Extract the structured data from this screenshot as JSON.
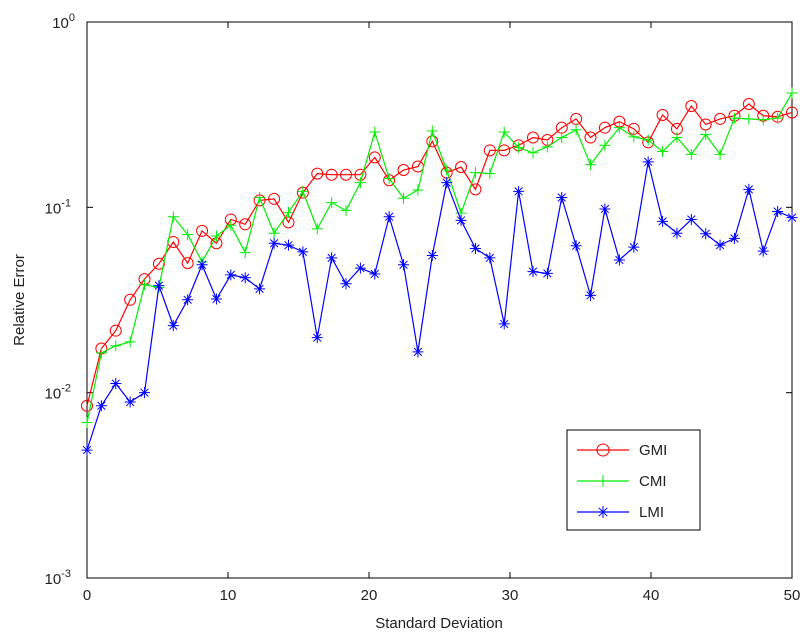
{
  "chart_data": {
    "type": "line",
    "xlabel": "Standard Deviation",
    "ylabel": "Relative Error",
    "log_y": true,
    "grid": false,
    "legend": "lower right",
    "x": [
      0,
      1.02,
      2.04,
      3.06,
      4.08,
      5.1,
      6.12,
      7.14,
      8.16,
      9.18,
      10.2,
      11.22,
      12.24,
      13.27,
      14.29,
      15.31,
      16.33,
      17.35,
      18.37,
      19.39,
      20.41,
      21.43,
      22.45,
      23.47,
      24.49,
      25.51,
      26.53,
      27.55,
      28.57,
      29.59,
      30.61,
      31.63,
      32.65,
      33.67,
      34.69,
      35.71,
      36.73,
      37.76,
      38.78,
      39.8,
      40.82,
      41.84,
      42.86,
      43.88,
      44.9,
      45.92,
      46.94,
      47.96,
      48.98,
      50
    ],
    "series": [
      {
        "name": "GMI",
        "color": "#ff0000",
        "marker": "circle",
        "values": [
          0.0085,
          0.0173,
          0.0216,
          0.0317,
          0.041,
          0.0496,
          0.065,
          0.05,
          0.0746,
          0.064,
          0.086,
          0.081,
          0.109,
          0.111,
          0.083,
          0.12,
          0.152,
          0.15,
          0.15,
          0.15,
          0.186,
          0.14,
          0.159,
          0.166,
          0.227,
          0.154,
          0.165,
          0.125,
          0.203,
          0.203,
          0.216,
          0.238,
          0.231,
          0.269,
          0.3,
          0.238,
          0.269,
          0.29,
          0.265,
          0.224,
          0.315,
          0.265,
          0.352,
          0.28,
          0.3,
          0.312,
          0.361,
          0.312,
          0.308,
          0.325
        ]
      },
      {
        "name": "CMI",
        "color": "#00ee00",
        "marker": "plus",
        "values": [
          0.0069,
          0.0164,
          0.0179,
          0.0188,
          0.0382,
          0.037,
          0.0889,
          0.0714,
          0.0508,
          0.07,
          0.08,
          0.057,
          0.113,
          0.0725,
          0.094,
          0.122,
          0.0766,
          0.106,
          0.096,
          0.136,
          0.255,
          0.143,
          0.112,
          0.124,
          0.258,
          0.159,
          0.093,
          0.154,
          0.152,
          0.255,
          0.21,
          0.197,
          0.212,
          0.238,
          0.262,
          0.17,
          0.216,
          0.269,
          0.24,
          0.231,
          0.2,
          0.238,
          0.193,
          0.247,
          0.193,
          0.303,
          0.3,
          0.297,
          0.303,
          0.414
        ]
      },
      {
        "name": "LMI",
        "color": "#0000ff",
        "marker": "asterisk",
        "values": [
          0.0049,
          0.0085,
          0.0112,
          0.0089,
          0.01,
          0.0378,
          0.023,
          0.0317,
          0.049,
          0.032,
          0.0432,
          0.0417,
          0.0363,
          0.064,
          0.0625,
          0.0575,
          0.0198,
          0.0534,
          0.0387,
          0.047,
          0.0437,
          0.089,
          0.049,
          0.0166,
          0.055,
          0.136,
          0.085,
          0.06,
          0.0534,
          0.0235,
          0.122,
          0.045,
          0.044,
          0.113,
          0.062,
          0.0335,
          0.098,
          0.052,
          0.061,
          0.176,
          0.084,
          0.0725,
          0.086,
          0.072,
          0.0625,
          0.068,
          0.125,
          0.058,
          0.095,
          0.088
        ]
      }
    ],
    "xlim": [
      0,
      50
    ],
    "xticks": [
      0,
      10,
      20,
      30,
      40,
      50
    ],
    "ylim": [
      0.001,
      1
    ],
    "yticks": [
      {
        "value": 0.001,
        "label": "10^-3"
      },
      {
        "value": 0.01,
        "label": "10^-2"
      },
      {
        "value": 0.1,
        "label": "10^-1"
      },
      {
        "value": 1,
        "label": "10^0"
      }
    ]
  }
}
